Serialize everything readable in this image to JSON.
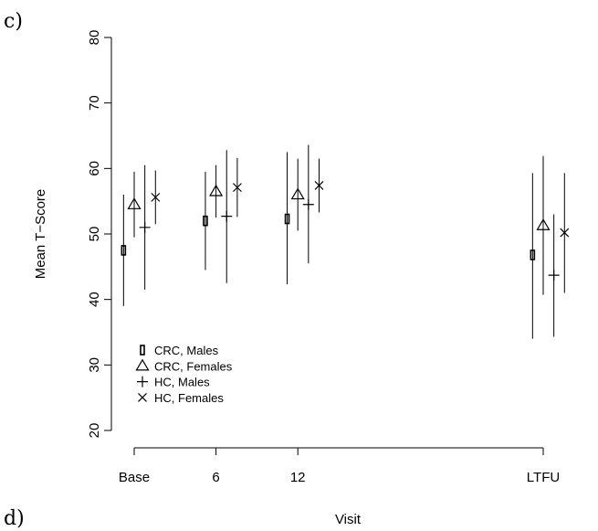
{
  "panel_labels": {
    "top": "c)",
    "bottom": "d)"
  },
  "chart_data": {
    "type": "errorbar",
    "xlabel": "Visit",
    "ylabel": "Mean T−Score",
    "ylim": [
      18,
      82
    ],
    "yticks": [
      20,
      30,
      40,
      50,
      60,
      70,
      80
    ],
    "x_ticks": [
      {
        "label": "Base",
        "pos": 1
      },
      {
        "label": "6",
        "pos": 2
      },
      {
        "label": "12",
        "pos": 3
      },
      {
        "label": "LTFU",
        "pos": 6
      }
    ],
    "grid": false,
    "legend_position": "bottom-left",
    "series": [
      {
        "name": "CRC, Males",
        "marker": "rect",
        "points": [
          {
            "visit": "Base",
            "x": 0.87,
            "mean": 47.5,
            "lower": 39.0,
            "upper": 56.0
          },
          {
            "visit": "6",
            "x": 1.87,
            "mean": 52.0,
            "lower": 44.5,
            "upper": 59.5
          },
          {
            "visit": "12",
            "x": 2.87,
            "mean": 52.3,
            "lower": 42.3,
            "upper": 62.5
          },
          {
            "visit": "LTFU",
            "x": 5.87,
            "mean": 46.8,
            "lower": 34.0,
            "upper": 59.3
          }
        ]
      },
      {
        "name": "CRC, Females",
        "marker": "triangle",
        "points": [
          {
            "visit": "Base",
            "x": 1.0,
            "mean": 54.5,
            "lower": 49.5,
            "upper": 59.5
          },
          {
            "visit": "6",
            "x": 2.0,
            "mean": 56.5,
            "lower": 52.5,
            "upper": 60.5
          },
          {
            "visit": "12",
            "x": 3.0,
            "mean": 56.0,
            "lower": 50.5,
            "upper": 61.5
          },
          {
            "visit": "LTFU",
            "x": 6.0,
            "mean": 51.3,
            "lower": 40.7,
            "upper": 61.9
          }
        ]
      },
      {
        "name": "HC, Males",
        "marker": "plus",
        "points": [
          {
            "visit": "Base",
            "x": 1.13,
            "mean": 51.0,
            "lower": 41.5,
            "upper": 60.5
          },
          {
            "visit": "6",
            "x": 2.13,
            "mean": 52.7,
            "lower": 42.5,
            "upper": 62.8
          },
          {
            "visit": "12",
            "x": 3.13,
            "mean": 54.5,
            "lower": 45.5,
            "upper": 63.6
          },
          {
            "visit": "LTFU",
            "x": 6.13,
            "mean": 43.7,
            "lower": 34.3,
            "upper": 53.0
          }
        ]
      },
      {
        "name": "HC, Females",
        "marker": "cross",
        "points": [
          {
            "visit": "Base",
            "x": 1.26,
            "mean": 55.6,
            "lower": 51.5,
            "upper": 59.7
          },
          {
            "visit": "6",
            "x": 2.26,
            "mean": 57.1,
            "lower": 52.6,
            "upper": 61.6
          },
          {
            "visit": "12",
            "x": 3.26,
            "mean": 57.4,
            "lower": 53.3,
            "upper": 61.5
          },
          {
            "visit": "LTFU",
            "x": 6.26,
            "mean": 50.2,
            "lower": 41.0,
            "upper": 59.3
          }
        ]
      }
    ]
  }
}
